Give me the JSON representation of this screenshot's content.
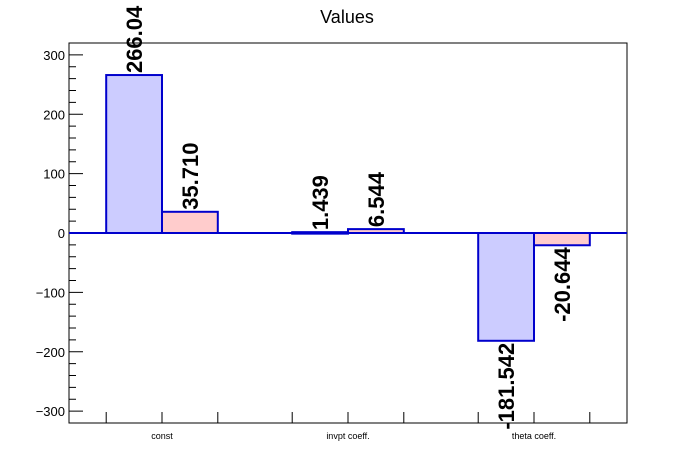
{
  "chart_data": {
    "type": "bar",
    "title": "Values",
    "categories": [
      "const",
      "invpt coeff.",
      "theta coeff."
    ],
    "series": [
      {
        "values": [
          266.04,
          1.439,
          -181.542
        ],
        "labels": [
          "266.04",
          "1.439",
          "-181.542"
        ],
        "fill": "#ccccff",
        "stroke": "#0000cc"
      },
      {
        "values": [
          35.71,
          6.544,
          -20.644
        ],
        "labels": [
          "35.710",
          "6.544",
          "-20.644"
        ],
        "fill": "#ffcccc",
        "stroke": "#0000cc"
      }
    ],
    "ylim": [
      -320,
      320
    ],
    "yticks": [
      -300,
      -200,
      -100,
      0,
      100,
      200,
      300
    ],
    "ytick_labels": [
      "−300",
      "−200",
      "−100",
      "0",
      "100",
      "200",
      "300"
    ],
    "grid": false,
    "legend": "none"
  }
}
